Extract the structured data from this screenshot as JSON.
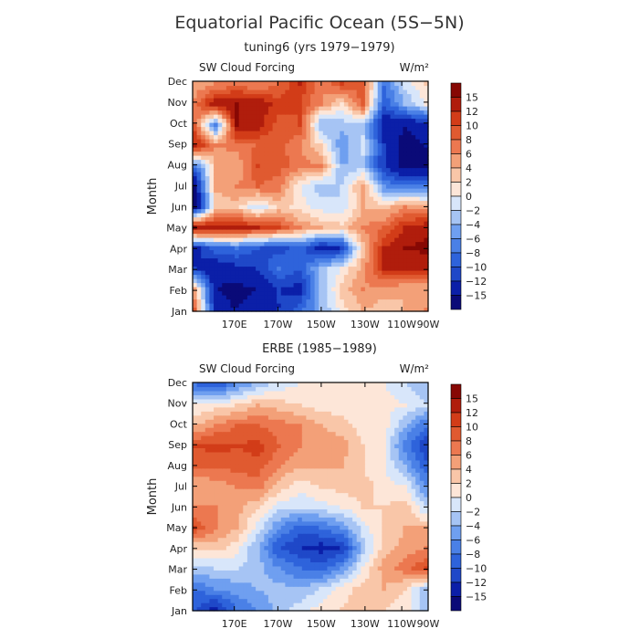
{
  "figure": {
    "title": "Equatorial Pacific Ocean (5S−5N)"
  },
  "chart_data": [
    {
      "type": "heatmap",
      "title": "tuning6 (yrs 1979−1979)",
      "left_label": "SW Cloud Forcing",
      "right_label": "W/m²",
      "ylabel": "Month",
      "x_ticks": [
        "170E",
        "170W",
        "150W",
        "130W",
        "110W",
        "90W"
      ],
      "y_ticks": [
        "Jan",
        "Feb",
        "Mar",
        "Apr",
        "May",
        "Jun",
        "Jul",
        "Aug",
        "Sep",
        "Oct",
        "Nov",
        "Dec"
      ],
      "x_domain": [
        "160E",
        "90W"
      ],
      "y_domain": [
        "Jan",
        "Dec"
      ],
      "levels": [
        "15",
        "12",
        "10",
        "8",
        "6",
        "4",
        "2",
        "0",
        "−2",
        "−4",
        "−6",
        "−8",
        "−10",
        "−12",
        "−15"
      ],
      "grid_columns": [
        "160E",
        "170E",
        "180",
        "170W",
        "160W",
        "150W",
        "140W",
        "130W",
        "120W",
        "110W",
        "100W",
        "90W"
      ],
      "grid_rows": [
        "Jan",
        "Feb",
        "Mar",
        "Apr",
        "May",
        "Jun",
        "Jul",
        "Aug",
        "Sep",
        "Oct",
        "Nov",
        "Dec"
      ],
      "values": [
        [
          8,
          -14,
          -15,
          -13,
          -12,
          -9,
          -4,
          1,
          4,
          3,
          4,
          6
        ],
        [
          4,
          -15,
          -16,
          -15,
          -12,
          -13,
          -4,
          3,
          6,
          5,
          4,
          4
        ],
        [
          -12,
          -14,
          -13,
          -12,
          -8,
          -10,
          -3,
          0,
          5,
          12,
          13,
          12
        ],
        [
          -13,
          -9,
          -8,
          -10,
          -11,
          -9,
          -14,
          -12,
          3,
          12,
          15,
          16
        ],
        [
          15,
          14,
          13,
          12,
          10,
          6,
          4,
          3,
          6,
          8,
          12,
          14
        ],
        [
          -16,
          2,
          3,
          -2,
          3,
          1,
          -1,
          -2,
          4,
          3,
          6,
          5
        ],
        [
          -16,
          5,
          6,
          8,
          7,
          0,
          -3,
          -2,
          5,
          -6,
          -8,
          -8
        ],
        [
          -8,
          4,
          4,
          10,
          9,
          7,
          6,
          -4,
          -3,
          -12,
          -16,
          -16
        ],
        [
          13,
          6,
          7,
          8,
          9,
          6,
          2,
          -6,
          -1,
          -12,
          -16,
          -15
        ],
        [
          8,
          -8,
          15,
          13,
          9,
          10,
          -4,
          -3,
          -3,
          -14,
          -15,
          -14
        ],
        [
          7,
          14,
          15,
          14,
          11,
          10,
          6,
          1,
          9,
          -10,
          -4,
          0
        ],
        [
          4,
          6,
          7,
          6,
          8,
          12,
          6,
          10,
          9,
          -8,
          -1,
          2
        ]
      ]
    },
    {
      "type": "heatmap",
      "title": "ERBE (1985−1989)",
      "left_label": "SW Cloud Forcing",
      "right_label": "W/m²",
      "ylabel": "Month",
      "x_ticks": [
        "170E",
        "170W",
        "150W",
        "130W",
        "110W",
        "90W"
      ],
      "y_ticks": [
        "Jan",
        "Feb",
        "Mar",
        "Apr",
        "May",
        "Jun",
        "Jul",
        "Aug",
        "Sep",
        "Oct",
        "Nov",
        "Dec"
      ],
      "x_domain": [
        "160E",
        "90W"
      ],
      "y_domain": [
        "Jan",
        "Dec"
      ],
      "levels": [
        "15",
        "12",
        "10",
        "8",
        "6",
        "4",
        "2",
        "0",
        "−2",
        "−4",
        "−6",
        "−8",
        "−10",
        "−12",
        "−15"
      ],
      "grid_columns": [
        "160E",
        "170E",
        "180",
        "170W",
        "160W",
        "150W",
        "140W",
        "130W",
        "120W",
        "110W",
        "100W",
        "90W"
      ],
      "grid_rows": [
        "Jan",
        "Feb",
        "Mar",
        "Apr",
        "May",
        "Jun",
        "Jul",
        "Aug",
        "Sep",
        "Oct",
        "Nov",
        "Dec"
      ],
      "values": [
        [
          -10,
          -13,
          -8,
          -6,
          -3,
          -1,
          1,
          2,
          3,
          2,
          1,
          -4
        ],
        [
          -8,
          -6,
          -5,
          -4,
          -3,
          -4,
          -2,
          1,
          3,
          4,
          2,
          -3
        ],
        [
          -3,
          -2,
          -2,
          -3,
          -6,
          -8,
          -9,
          -6,
          0,
          5,
          7,
          10
        ],
        [
          2,
          3,
          1,
          -4,
          -10,
          -12,
          -13,
          -12,
          -3,
          3,
          5,
          6
        ],
        [
          10,
          6,
          4,
          -1,
          -6,
          -9,
          -8,
          -6,
          -1,
          2,
          4,
          4
        ],
        [
          6,
          6,
          5,
          2,
          -1,
          -2,
          -1,
          0,
          2,
          2,
          3,
          -2
        ],
        [
          4,
          5,
          6,
          7,
          3,
          1,
          2,
          3,
          3,
          1,
          0,
          -6
        ],
        [
          8,
          8,
          9,
          9,
          6,
          4,
          4,
          4,
          2,
          0,
          -4,
          -9
        ],
        [
          10,
          11,
          10,
          11,
          8,
          6,
          5,
          5,
          2,
          0,
          -7,
          -12
        ],
        [
          4,
          6,
          8,
          8,
          7,
          6,
          4,
          3,
          1,
          1,
          -4,
          -8
        ],
        [
          0,
          1,
          2,
          4,
          3,
          2,
          1,
          1,
          0,
          1,
          0,
          -2
        ],
        [
          -8,
          -10,
          -6,
          -3,
          -1,
          0,
          1,
          1,
          1,
          0,
          -2,
          -4
        ]
      ]
    }
  ]
}
